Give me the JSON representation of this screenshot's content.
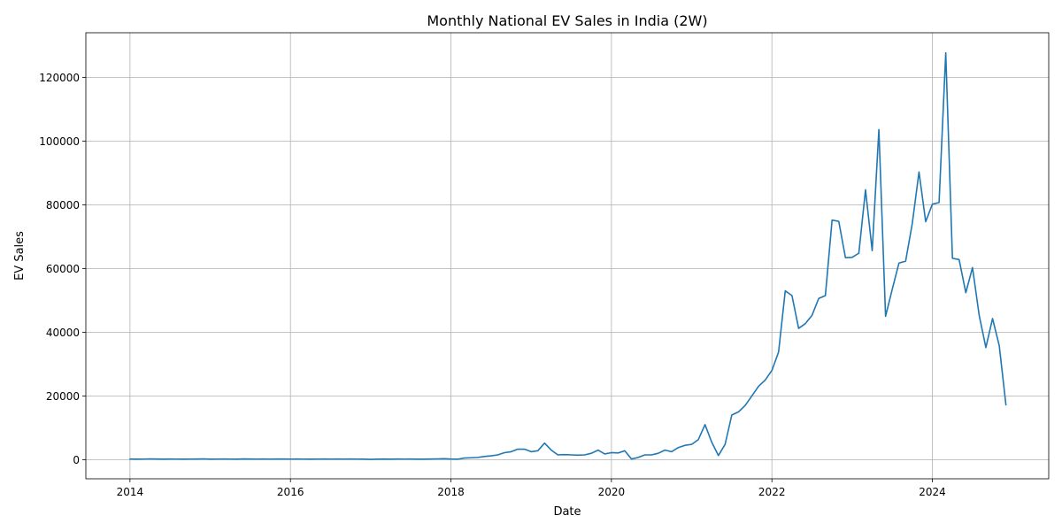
{
  "colors": {
    "line": "#1f77b4",
    "grid": "#b0b0b0",
    "axis": "#000000",
    "background": "#ffffff"
  },
  "chart_data": {
    "type": "line",
    "title": "Monthly National EV Sales in India (2W)",
    "xlabel": "Date",
    "ylabel": "EV Sales",
    "xlim": [
      2013.45,
      2025.45
    ],
    "ylim": [
      -6000,
      134000
    ],
    "grid": true,
    "xticks": [
      2014,
      2016,
      2018,
      2020,
      2022,
      2024
    ],
    "xtick_labels": [
      "2014",
      "2016",
      "2018",
      "2020",
      "2022",
      "2024"
    ],
    "yticks": [
      0,
      20000,
      40000,
      60000,
      80000,
      100000,
      120000
    ],
    "ytick_labels": [
      "0",
      "20000",
      "40000",
      "60000",
      "80000",
      "100000",
      "120000"
    ],
    "series": [
      {
        "name": "EV Sales",
        "start": "2014-01",
        "frequency": "monthly",
        "values": [
          200,
          150,
          180,
          250,
          200,
          150,
          200,
          180,
          150,
          180,
          200,
          250,
          150,
          180,
          200,
          180,
          150,
          220,
          200,
          180,
          200,
          180,
          200,
          200,
          180,
          200,
          180,
          150,
          180,
          200,
          180,
          200,
          180,
          200,
          180,
          150,
          100,
          150,
          200,
          150,
          200,
          180,
          200,
          150,
          150,
          200,
          250,
          300,
          200,
          150,
          500,
          600,
          700,
          1000,
          1200,
          1500,
          2200,
          2500,
          3300,
          3300,
          2500,
          2800,
          5200,
          3000,
          1500,
          1600,
          1500,
          1400,
          1500,
          2000,
          3000,
          1800,
          2200,
          2100,
          2800,
          200,
          700,
          1500,
          1500,
          2000,
          3000,
          2500,
          3800,
          4500,
          4800,
          6300,
          11000,
          5500,
          1300,
          4800,
          14000,
          15000,
          17000,
          20000,
          23000,
          25000,
          28000,
          33800,
          53000,
          51500,
          41200,
          42700,
          45300,
          50600,
          51500,
          75200,
          74800,
          63400,
          63500,
          64800,
          84700,
          65600,
          103600,
          45000,
          53500,
          61700,
          62300,
          74200,
          90300,
          74700,
          80200,
          80700,
          127700,
          63200,
          62800,
          52400,
          60300,
          45300,
          35200,
          44300,
          35800,
          17200
        ]
      }
    ]
  }
}
